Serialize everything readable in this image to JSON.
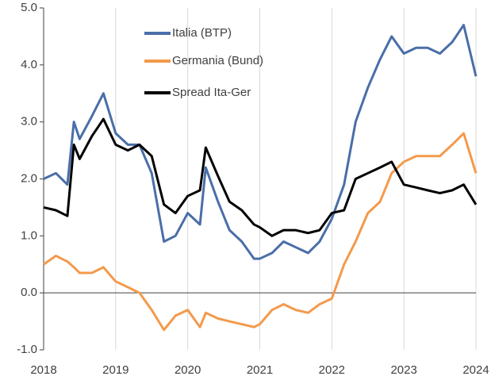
{
  "chart_data": {
    "type": "line",
    "x": [
      2018.0,
      2018.17,
      2018.33,
      2018.42,
      2018.5,
      2018.67,
      2018.83,
      2019.0,
      2019.17,
      2019.33,
      2019.5,
      2019.67,
      2019.83,
      2020.0,
      2020.17,
      2020.25,
      2020.42,
      2020.58,
      2020.75,
      2020.92,
      2021.0,
      2021.17,
      2021.33,
      2021.5,
      2021.67,
      2021.83,
      2022.0,
      2022.17,
      2022.33,
      2022.5,
      2022.67,
      2022.83,
      2023.0,
      2023.17,
      2023.33,
      2023.5,
      2023.67,
      2023.83,
      2024.0
    ],
    "series": [
      {
        "name": "Italia (BTP)",
        "color": "#4a6ea8",
        "values": [
          2.0,
          2.1,
          1.9,
          3.0,
          2.7,
          3.1,
          3.5,
          2.8,
          2.6,
          2.6,
          2.1,
          0.9,
          1.0,
          1.4,
          1.2,
          2.2,
          1.6,
          1.1,
          0.9,
          0.6,
          0.6,
          0.7,
          0.9,
          0.8,
          0.7,
          0.9,
          1.3,
          1.9,
          3.0,
          3.6,
          4.1,
          4.5,
          4.2,
          4.3,
          4.3,
          4.2,
          4.4,
          4.7,
          3.8
        ]
      },
      {
        "name": "Germania (Bund)",
        "color": "#f39a4c",
        "values": [
          0.5,
          0.65,
          0.55,
          0.45,
          0.35,
          0.35,
          0.45,
          0.2,
          0.1,
          0.0,
          -0.3,
          -0.65,
          -0.4,
          -0.3,
          -0.6,
          -0.35,
          -0.45,
          -0.5,
          -0.55,
          -0.6,
          -0.55,
          -0.3,
          -0.2,
          -0.3,
          -0.35,
          -0.2,
          -0.1,
          0.5,
          0.9,
          1.4,
          1.6,
          2.1,
          2.3,
          2.4,
          2.4,
          2.4,
          2.6,
          2.8,
          2.1
        ]
      },
      {
        "name": "Spread Ita-Ger",
        "color": "#000000",
        "values": [
          1.5,
          1.45,
          1.35,
          2.6,
          2.35,
          2.75,
          3.05,
          2.6,
          2.5,
          2.6,
          2.4,
          1.55,
          1.4,
          1.7,
          1.8,
          2.55,
          2.05,
          1.6,
          1.45,
          1.2,
          1.15,
          1.0,
          1.1,
          1.1,
          1.05,
          1.1,
          1.4,
          1.45,
          2.0,
          2.1,
          2.2,
          2.3,
          1.9,
          1.85,
          1.8,
          1.75,
          1.8,
          1.9,
          1.55
        ]
      }
    ],
    "xlim": [
      2018,
      2024
    ],
    "xticks": [
      2018,
      2019,
      2020,
      2021,
      2022,
      2023,
      2024
    ],
    "ylim": [
      -1,
      5
    ],
    "yticks": [
      {
        "value": -1,
        "label": "-1.0"
      },
      {
        "value": 0,
        "label": "0.0"
      },
      {
        "value": 1,
        "label": "1.0"
      },
      {
        "value": 2,
        "label": "2.0"
      },
      {
        "value": 3,
        "label": "3.0"
      },
      {
        "value": 4,
        "label": "4.0"
      },
      {
        "value": 5,
        "label": "5.0"
      }
    ],
    "grid": true
  }
}
